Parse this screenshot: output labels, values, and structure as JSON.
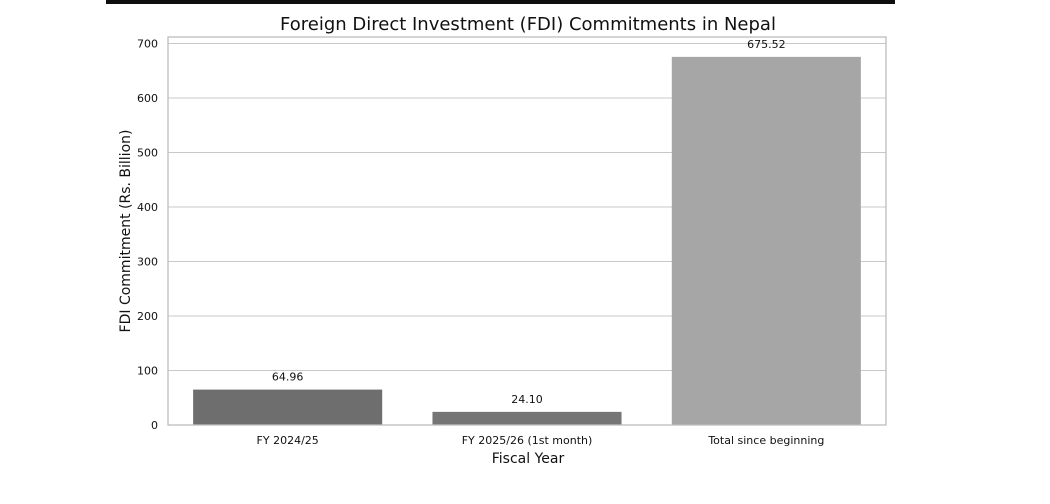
{
  "chart_data": {
    "type": "bar",
    "title": "Foreign Direct Investment (FDI) Commitments in Nepal",
    "xlabel": "Fiscal Year",
    "ylabel": "FDI Commitment (Rs. Billion)",
    "categories": [
      "FY 2024/25",
      "FY 2025/26 (1st month)",
      "Total since beginning"
    ],
    "values": [
      64.96,
      24.1,
      675.52
    ],
    "value_labels": [
      "64.96",
      "24.10",
      "675.52"
    ],
    "ylim": [
      0,
      712
    ],
    "yticks": [
      0,
      100,
      200,
      300,
      400,
      500,
      600,
      700
    ],
    "grid": true,
    "legend": "none",
    "colors": {
      "bars": [
        "#6e6e6e",
        "#757575",
        "#a6a6a6"
      ],
      "grid": "#c8c8c8",
      "axes": "#bdbdbd",
      "top_rule": "#0e0e0e"
    }
  }
}
